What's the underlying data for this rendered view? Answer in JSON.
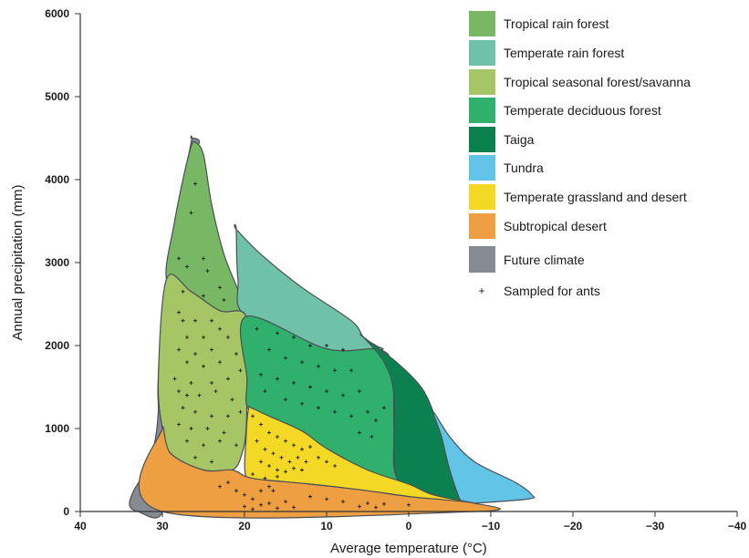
{
  "chart_data": {
    "type": "area",
    "title": "",
    "xlabel": "Average temperature (°C)",
    "ylabel": "Annual precipitation (mm)",
    "xlim": [
      40,
      -40
    ],
    "ylim": [
      0,
      6000
    ],
    "xticks": [
      40,
      30,
      20,
      10,
      0,
      -10,
      -20,
      -30,
      -40
    ],
    "yticks": [
      0,
      1000,
      2000,
      3000,
      4000,
      5000,
      6000
    ],
    "xtick_labels": [
      "40",
      "30",
      "20",
      "10",
      "0",
      "−10",
      "−20",
      "−30",
      "−40"
    ],
    "ytick_labels": [
      "0",
      "1000",
      "2000",
      "3000",
      "4000",
      "5000",
      "6000"
    ],
    "grid": false,
    "legend_position": "top-right",
    "legend": [
      {
        "label": "Tropical rain forest",
        "color": "#78b865"
      },
      {
        "label": "Temperate rain forest",
        "color": "#6fc2a7"
      },
      {
        "label": "Tropical seasonal forest/savanna",
        "color": "#a6c665"
      },
      {
        "label": "Temperate deciduous forest",
        "color": "#2fb06c"
      },
      {
        "label": "Taiga",
        "color": "#0b8150"
      },
      {
        "label": "Tundra",
        "color": "#62c4e6"
      },
      {
        "label": "Temperate grassland and desert",
        "color": "#f3d826"
      },
      {
        "label": "Subtropical desert",
        "color": "#ee9f42"
      },
      {
        "label": "Future climate",
        "color": "#868b91"
      },
      {
        "label": "Sampled for ants",
        "marker": "+"
      }
    ],
    "regions": [
      {
        "name": "Future climate",
        "color": "#868b91",
        "points": [
          [
            26.5,
            4500
          ],
          [
            25.5,
            4450
          ],
          [
            27,
            4200
          ],
          [
            27.5,
            3900
          ],
          [
            28.5,
            3500
          ],
          [
            29.5,
            2800
          ],
          [
            30.5,
            1600
          ],
          [
            30.5,
            1200
          ],
          [
            31,
            800
          ],
          [
            32,
            500
          ],
          [
            33.5,
            250
          ],
          [
            34,
            80
          ],
          [
            33,
            0
          ],
          [
            30,
            0
          ],
          [
            30,
            1000
          ],
          [
            30.5,
            1600
          ],
          [
            29.5,
            2800
          ],
          [
            28,
            3700
          ],
          [
            26.5,
            4450
          ]
        ]
      },
      {
        "name": "Tropical rain forest",
        "color": "#78b865",
        "points": [
          [
            26,
            4450
          ],
          [
            25,
            4300
          ],
          [
            24,
            3700
          ],
          [
            22.5,
            3100
          ],
          [
            20.5,
            2600
          ],
          [
            19.8,
            2350
          ],
          [
            23,
            2420
          ],
          [
            26.5,
            2650
          ],
          [
            29.5,
            2800
          ],
          [
            28.5,
            3500
          ],
          [
            27.5,
            4000
          ],
          [
            26.5,
            4400
          ]
        ]
      },
      {
        "name": "Temperate rain forest",
        "color": "#6fc2a7",
        "points": [
          [
            21,
            3400
          ],
          [
            18,
            3100
          ],
          [
            13,
            2700
          ],
          [
            7,
            2300
          ],
          [
            5.5,
            2100
          ],
          [
            4,
            2000
          ],
          [
            3.5,
            1950
          ],
          [
            10,
            1960
          ],
          [
            19.8,
            2350
          ],
          [
            20.8,
            2800
          ],
          [
            21,
            3400
          ]
        ]
      },
      {
        "name": "Tropical seasonal forest/savanna",
        "color": "#a6c665",
        "points": [
          [
            29.5,
            2800
          ],
          [
            26.5,
            2650
          ],
          [
            23,
            2420
          ],
          [
            19.8,
            2350
          ],
          [
            19.7,
            1600
          ],
          [
            19.8,
            1000
          ],
          [
            20.3,
            700
          ],
          [
            21.5,
            500
          ],
          [
            25,
            500
          ],
          [
            29,
            700
          ],
          [
            30,
            1000
          ],
          [
            30.5,
            1600
          ]
        ]
      },
      {
        "name": "Temperate deciduous forest",
        "color": "#2fb06c",
        "points": [
          [
            19.8,
            2350
          ],
          [
            10,
            1960
          ],
          [
            3.5,
            1950
          ],
          [
            2,
            1700
          ],
          [
            1.8,
            1000
          ],
          [
            1.5,
            420
          ],
          [
            -2,
            240
          ],
          [
            -5,
            150
          ],
          [
            -6.5,
            100
          ],
          [
            7,
            450
          ],
          [
            10,
            650
          ],
          [
            16,
            1000
          ],
          [
            19.5,
            1230
          ],
          [
            19.7,
            1600
          ]
        ]
      },
      {
        "name": "Taiga",
        "color": "#0b8150",
        "points": [
          [
            5.5,
            2100
          ],
          [
            3,
            1800
          ],
          [
            1.8,
            1400
          ],
          [
            1.5,
            420
          ],
          [
            -2,
            240
          ],
          [
            -5,
            150
          ],
          [
            -6.5,
            100
          ],
          [
            -5,
            500
          ],
          [
            -4,
            900
          ],
          [
            -3,
            1200
          ],
          [
            -1.5,
            1500
          ],
          [
            1.5,
            1800
          ],
          [
            5.5,
            2100
          ]
        ]
      },
      {
        "name": "Tundra",
        "color": "#62c4e6",
        "points": [
          [
            -3,
            1200
          ],
          [
            -5,
            900
          ],
          [
            -8,
            600
          ],
          [
            -13,
            350
          ],
          [
            -15,
            200
          ],
          [
            -14.5,
            150
          ],
          [
            -8,
            100
          ],
          [
            -6.5,
            100
          ],
          [
            -5,
            500
          ],
          [
            -4,
            900
          ]
        ]
      },
      {
        "name": "Temperate grassland and desert",
        "color": "#f3d826",
        "points": [
          [
            19,
            1240
          ],
          [
            17,
            1150
          ],
          [
            13,
            970
          ],
          [
            10,
            760
          ],
          [
            5,
            500
          ],
          [
            0,
            330
          ],
          [
            -3,
            200
          ],
          [
            -8,
            100
          ],
          [
            -6.5,
            95
          ],
          [
            0,
            180
          ],
          [
            5,
            250
          ],
          [
            12,
            330
          ],
          [
            17.5,
            380
          ],
          [
            19.8,
            420
          ],
          [
            19.8,
            900
          ],
          [
            19.5,
            1240
          ]
        ]
      },
      {
        "name": "Subtropical desert",
        "color": "#ee9f42",
        "points": [
          [
            30,
            1000
          ],
          [
            29,
            700
          ],
          [
            25,
            500
          ],
          [
            21.5,
            500
          ],
          [
            19.8,
            420
          ],
          [
            17.5,
            380
          ],
          [
            12,
            330
          ],
          [
            5,
            250
          ],
          [
            0,
            180
          ],
          [
            -8,
            100
          ],
          [
            -8,
            0
          ],
          [
            30,
            0
          ]
        ]
      }
    ],
    "samples": [
      [
        26,
        3950
      ],
      [
        26.5,
        3600
      ],
      [
        28,
        3050
      ],
      [
        27,
        2950
      ],
      [
        25,
        3050
      ],
      [
        24.5,
        2900
      ],
      [
        27.5,
        2650
      ],
      [
        25,
        2600
      ],
      [
        23,
        2700
      ],
      [
        22.5,
        2550
      ],
      [
        28,
        2400
      ],
      [
        27.5,
        2300
      ],
      [
        26,
        2300
      ],
      [
        24,
        2300
      ],
      [
        23,
        2200
      ],
      [
        27,
        2100
      ],
      [
        25,
        2100
      ],
      [
        22,
        2100
      ],
      [
        28,
        1950
      ],
      [
        26,
        1900
      ],
      [
        24,
        1950
      ],
      [
        21,
        1900
      ],
      [
        27,
        1800
      ],
      [
        25,
        1750
      ],
      [
        23,
        1800
      ],
      [
        20.5,
        1700
      ],
      [
        28.5,
        1600
      ],
      [
        26.5,
        1550
      ],
      [
        24,
        1550
      ],
      [
        22,
        1600
      ],
      [
        28,
        1450
      ],
      [
        27,
        1400
      ],
      [
        25.5,
        1400
      ],
      [
        23.5,
        1450
      ],
      [
        21.5,
        1350
      ],
      [
        27.5,
        1250
      ],
      [
        26,
        1200
      ],
      [
        24,
        1150
      ],
      [
        22,
        1150
      ],
      [
        20.5,
        1200
      ],
      [
        28,
        1050
      ],
      [
        26.5,
        1000
      ],
      [
        24.5,
        1000
      ],
      [
        22.5,
        950
      ],
      [
        27,
        850
      ],
      [
        25,
        800
      ],
      [
        23,
        850
      ],
      [
        21,
        800
      ],
      [
        26,
        650
      ],
      [
        24,
        600
      ],
      [
        18.5,
        2200
      ],
      [
        16,
        2150
      ],
      [
        14,
        2100
      ],
      [
        12,
        2000
      ],
      [
        10,
        2000
      ],
      [
        8,
        1950
      ],
      [
        17,
        1950
      ],
      [
        15,
        1850
      ],
      [
        13,
        1800
      ],
      [
        11,
        1750
      ],
      [
        9,
        1700
      ],
      [
        7,
        1700
      ],
      [
        18,
        1650
      ],
      [
        16,
        1600
      ],
      [
        14,
        1550
      ],
      [
        12,
        1500
      ],
      [
        10,
        1450
      ],
      [
        8,
        1400
      ],
      [
        6,
        1450
      ],
      [
        17.5,
        1450
      ],
      [
        15,
        1350
      ],
      [
        13,
        1300
      ],
      [
        11,
        1250
      ],
      [
        9,
        1200
      ],
      [
        7,
        1150
      ],
      [
        5,
        1200
      ],
      [
        4,
        1100
      ],
      [
        3,
        1250
      ],
      [
        6,
        950
      ],
      [
        4.5,
        900
      ],
      [
        19,
        1150
      ],
      [
        18,
        1050
      ],
      [
        17,
        950
      ],
      [
        16,
        900
      ],
      [
        15,
        850
      ],
      [
        14,
        800
      ],
      [
        13,
        750
      ],
      [
        12,
        780
      ],
      [
        18.5,
        850
      ],
      [
        17.5,
        750
      ],
      [
        16.5,
        700
      ],
      [
        15.5,
        650
      ],
      [
        14.5,
        600
      ],
      [
        13.5,
        650
      ],
      [
        12.5,
        600
      ],
      [
        11,
        650
      ],
      [
        10,
        600
      ],
      [
        9,
        550
      ],
      [
        18,
        600
      ],
      [
        17,
        550
      ],
      [
        16,
        500
      ],
      [
        15,
        480
      ],
      [
        14,
        520
      ],
      [
        13,
        500
      ],
      [
        19,
        450
      ],
      [
        17.5,
        400
      ],
      [
        16,
        420
      ],
      [
        17,
        300
      ],
      [
        16.5,
        250
      ],
      [
        18,
        250
      ],
      [
        20,
        200
      ],
      [
        19,
        150
      ],
      [
        17,
        100
      ],
      [
        15,
        120
      ],
      [
        12,
        180
      ],
      [
        10,
        150
      ],
      [
        8,
        120
      ],
      [
        5,
        100
      ],
      [
        3,
        90
      ],
      [
        0,
        80
      ],
      [
        18,
        80
      ],
      [
        20,
        60
      ],
      [
        19,
        30
      ],
      [
        16,
        40
      ],
      [
        14,
        50
      ],
      [
        6,
        60
      ],
      [
        4,
        50
      ],
      [
        22,
        350
      ],
      [
        21,
        250
      ],
      [
        23,
        300
      ]
    ]
  }
}
